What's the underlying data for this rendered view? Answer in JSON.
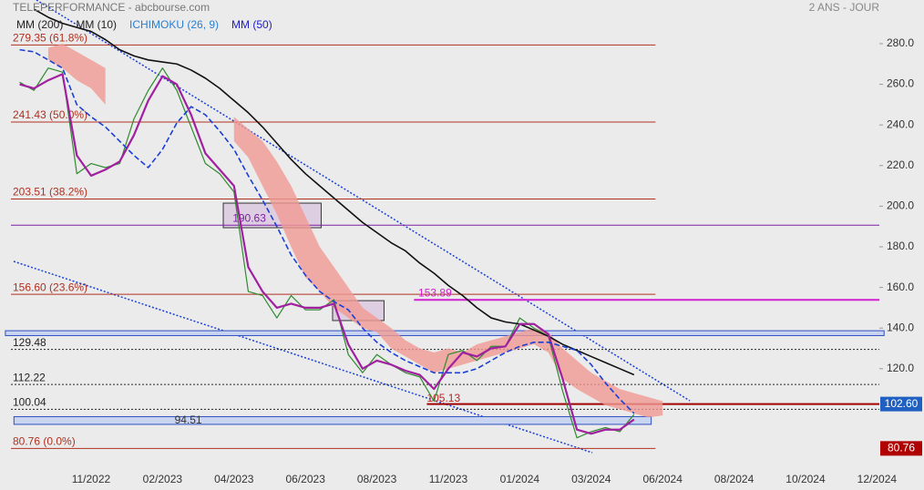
{
  "chart_data": {
    "type": "line",
    "title": "TELEPERFORMANCE - abcbourse.com",
    "subtitle": "2 ANS - JOUR",
    "categories": [
      null,
      null,
      null,
      null,
      null,
      null,
      "11/2022",
      null,
      null,
      null,
      null,
      "02/2023",
      null,
      null,
      null,
      null,
      "04/2023",
      null,
      null,
      null,
      null,
      "06/2023",
      null,
      null,
      null,
      null,
      "08/2023",
      null,
      null,
      null,
      null,
      "11/2023",
      null,
      null,
      null,
      null,
      "01/2024",
      null,
      null,
      null,
      null,
      "03/2024",
      null,
      null,
      null,
      null,
      "06/2024",
      null,
      null,
      null,
      null,
      "08/2024",
      null,
      null,
      null,
      null,
      "10/2024",
      null,
      null,
      null,
      null,
      "12/2024"
    ],
    "ylim": [
      70.6,
      301.5
    ],
    "yticks": [
      {
        "value": 120,
        "label": "120.0"
      },
      {
        "value": 140,
        "label": "140.0"
      },
      {
        "value": 160,
        "label": "160.0"
      },
      {
        "value": 180,
        "label": "180.0"
      },
      {
        "value": 200,
        "label": "200.0"
      },
      {
        "value": 220,
        "label": "220.0"
      },
      {
        "value": 240,
        "label": "240.0"
      },
      {
        "value": 260,
        "label": "260.0"
      },
      {
        "value": 280,
        "label": "280.0"
      }
    ],
    "series": [
      {
        "kind": "line",
        "color": "#2e8b2e",
        "width": 1.2,
        "values": [
          null,
          261,
          257,
          268,
          266,
          216,
          221,
          219,
          221,
          243,
          257,
          268,
          257,
          239,
          221,
          216,
          207,
          158,
          156,
          145,
          156,
          149,
          149,
          154,
          127,
          118,
          127,
          122,
          118,
          116,
          104,
          127,
          129,
          124,
          131,
          131,
          145,
          140,
          136,
          109,
          86,
          89,
          91,
          89,
          97.5,
          null,
          null,
          null,
          null,
          null,
          null,
          null,
          null,
          null,
          null,
          null,
          null,
          null,
          null,
          null,
          null,
          null
        ]
      },
      {
        "kind": "line",
        "name": "MM (200)",
        "color": "#111111",
        "legend_color": "#222222",
        "width": 1.6,
        "values": [
          null,
          null,
          297,
          293,
          290,
          288,
          286,
          282,
          277,
          274,
          272,
          271,
          270,
          267,
          263,
          258,
          252,
          246,
          239,
          231,
          223,
          216,
          210,
          204,
          198,
          192,
          187,
          182,
          178,
          172,
          167,
          161,
          156,
          150,
          145,
          143,
          142,
          139,
          136,
          132,
          129,
          126,
          123,
          120,
          117,
          null,
          null,
          null,
          null,
          null,
          null,
          null,
          null,
          null,
          null,
          null,
          null,
          null,
          null,
          null,
          null,
          null
        ]
      },
      {
        "kind": "line",
        "name": "MM (10)",
        "color": "#a020a0",
        "legend_color": "#222222",
        "width": 2.2,
        "values": [
          null,
          260,
          258,
          262,
          265,
          225,
          215,
          218,
          222,
          235,
          252,
          264,
          260,
          245,
          226,
          218,
          210,
          170,
          158,
          150,
          152,
          150,
          150,
          152,
          132,
          120,
          124,
          122,
          119,
          117,
          110,
          120,
          128,
          126,
          130,
          131,
          142,
          142,
          137,
          115,
          90,
          88,
          90,
          90,
          95,
          null,
          null,
          null,
          null,
          null,
          null,
          null,
          null,
          null,
          null,
          null,
          null,
          null,
          null,
          null,
          null,
          null
        ]
      },
      {
        "kind": "cloud",
        "name": "ICHIMOKU (26, 9)",
        "color": "#f19a94",
        "legend_color": "#2a7fd0",
        "upper": [
          null,
          null,
          null,
          278,
          280,
          276,
          272,
          268,
          null,
          null,
          null,
          null,
          null,
          null,
          null,
          null,
          244,
          238,
          232,
          222,
          210,
          195,
          180,
          170,
          160,
          150,
          145,
          140,
          134,
          130,
          128,
          130,
          128,
          132,
          134,
          136,
          138,
          140,
          138,
          130,
          124,
          118,
          114,
          110,
          108,
          106,
          104,
          null,
          null,
          null,
          null,
          null,
          null,
          null,
          null,
          null,
          null,
          null,
          null,
          null,
          null,
          null
        ],
        "lower": [
          null,
          null,
          null,
          272,
          268,
          262,
          258,
          250,
          null,
          null,
          null,
          null,
          null,
          null,
          null,
          null,
          232,
          224,
          210,
          196,
          180,
          165,
          158,
          150,
          145,
          140,
          138,
          130,
          126,
          122,
          118,
          120,
          122,
          124,
          126,
          128,
          130,
          132,
          128,
          115,
          110,
          106,
          102,
          100,
          98,
          96,
          97,
          null,
          null,
          null,
          null,
          null,
          null,
          null,
          null,
          null,
          null,
          null,
          null,
          null,
          null,
          null
        ]
      },
      {
        "kind": "line",
        "name": "MM (50)",
        "color": "#1a3fd8",
        "legend_color": "#2020c0",
        "width": 1.6,
        "dash": "6,3",
        "values": [
          null,
          277,
          276,
          272,
          268,
          250,
          244,
          239,
          232,
          225,
          219,
          228,
          241,
          249,
          245,
          237,
          228,
          215,
          203,
          190,
          176,
          166,
          158,
          153,
          149,
          140,
          133,
          128,
          124,
          121,
          118,
          118,
          118,
          120,
          124,
          128,
          131,
          133,
          133,
          131,
          129,
          122,
          113,
          105,
          98,
          null,
          null,
          null,
          null,
          null,
          null,
          null,
          null,
          null,
          null,
          null,
          null,
          null,
          null,
          null,
          null,
          null
        ]
      }
    ],
    "zones": [
      {
        "low": 136.3,
        "high": 138.7,
        "from": 0,
        "to": 61.5
      },
      {
        "low": 92.6,
        "high": 96.4,
        "from": 0.6,
        "to": 45.2,
        "value": 94.51,
        "label_at": 12.8
      }
    ],
    "boxes": [
      {
        "low": 189.4,
        "high": 201.5,
        "from": 15.25,
        "to": 22.1
      },
      {
        "low": 143.7,
        "high": 153.5,
        "from": 22.9,
        "to": 26.5
      }
    ],
    "levels": [
      {
        "value": 279.35,
        "label": "279.35  (61.8%)",
        "color": "#b03020",
        "to": 45.5
      },
      {
        "value": 241.43,
        "label": "241.43  (50.0%)",
        "color": "#b03020",
        "to": 45.5
      },
      {
        "value": 203.51,
        "label": "203.51  (38.2%)",
        "color": "#b03020",
        "to": 45.5
      },
      {
        "value": 156.6,
        "label": "156.60  (23.6%)",
        "color": "#b03020",
        "to": 45.5
      },
      {
        "value": 80.76,
        "label": "80.76  (0.0%)",
        "color": "#b03020",
        "to": 45.5,
        "tag_value": true,
        "tag_color": "#b00000"
      },
      {
        "value": 190.63,
        "show_value": true,
        "color": "#7b1fa2",
        "label_at": 15.9
      },
      {
        "value": 153.89,
        "show_value": true,
        "color": "#d020d0",
        "width": 2,
        "from": 28.6,
        "label_at": 28.9
      },
      {
        "value": 129.48,
        "show_value": true,
        "color": "#222222",
        "dash": "2,2"
      },
      {
        "value": 112.22,
        "show_value": true,
        "color": "#222222",
        "dash": "2,2"
      },
      {
        "value": 100.04,
        "show_value": true,
        "color": "#222222",
        "dash": "2,2"
      },
      {
        "value": 102.6,
        "axis_label": "102.60",
        "color": "#a00000",
        "width": 2,
        "from": 29.5,
        "tag_color": "#2060c0"
      },
      {
        "value": 105.13,
        "show_value": true,
        "color": "#c02020",
        "line": false,
        "label_at": 29.5
      }
    ]
  }
}
